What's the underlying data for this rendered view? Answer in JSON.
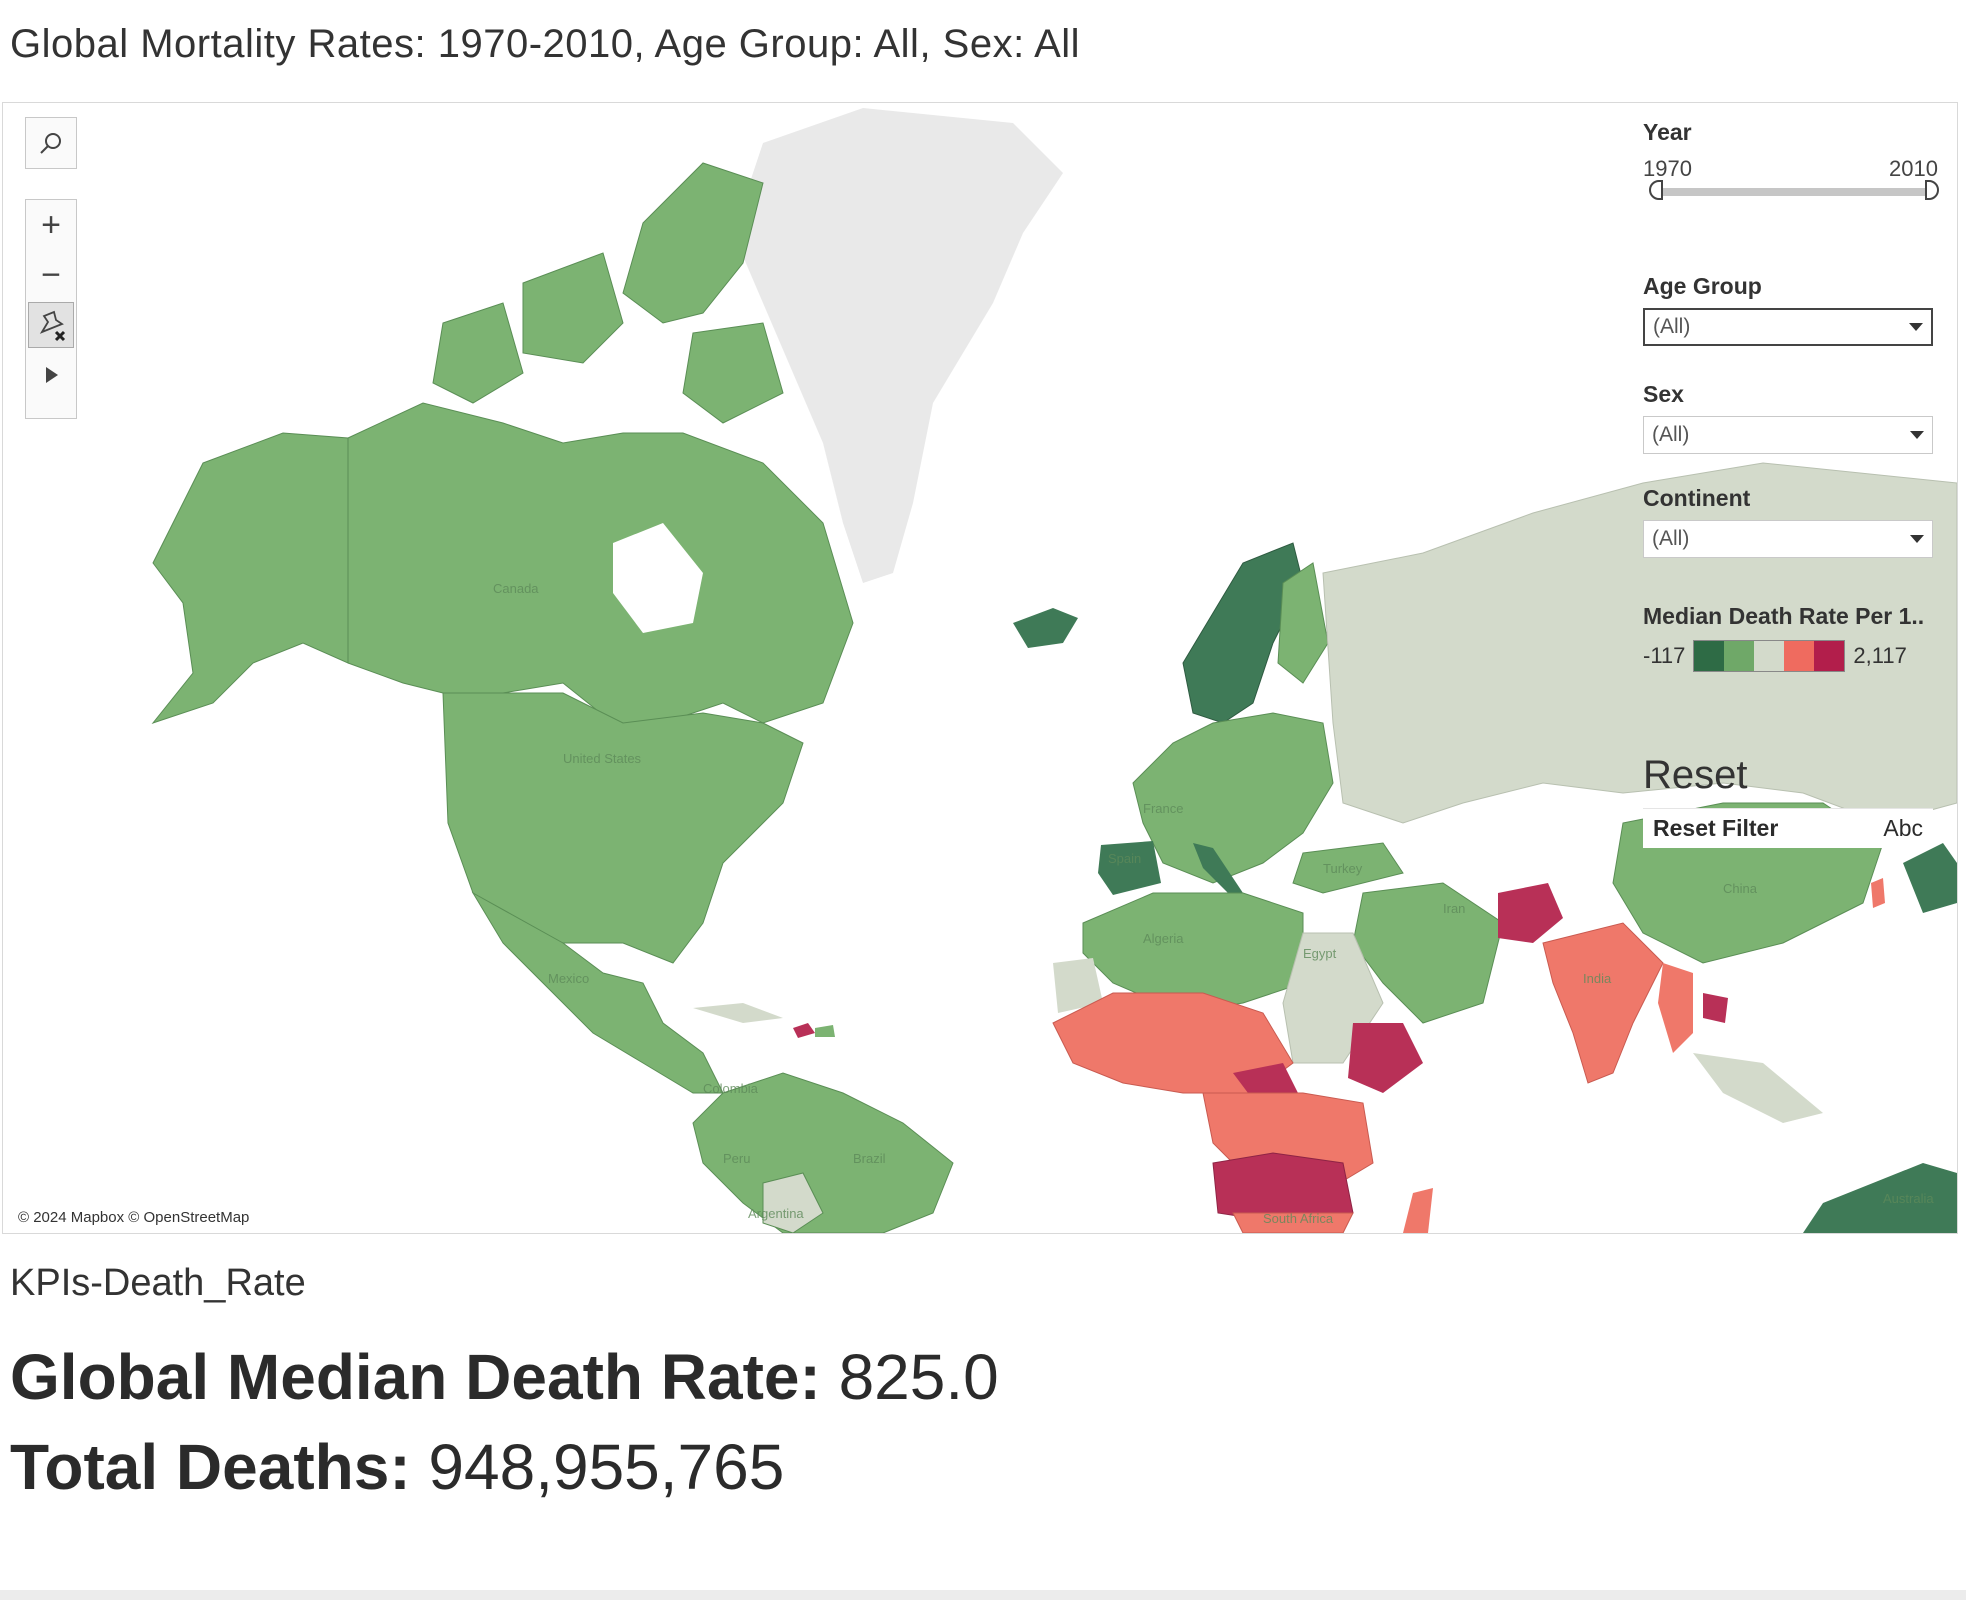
{
  "title": "Global Mortality Rates: 1970-2010, Age Group: All, Sex: All",
  "map": {
    "attribution": "© 2024 Mapbox © OpenStreetMap",
    "labels": [
      {
        "name": "Canada",
        "region": "north-america"
      },
      {
        "name": "United States",
        "region": "north-america"
      },
      {
        "name": "Mexico",
        "region": "north-america"
      },
      {
        "name": "Colombia",
        "region": "south-america"
      },
      {
        "name": "Peru",
        "region": "south-america"
      },
      {
        "name": "Brazil",
        "region": "south-america"
      },
      {
        "name": "Argentina",
        "region": "south-america"
      },
      {
        "name": "France",
        "region": "europe"
      },
      {
        "name": "Spain",
        "region": "europe"
      },
      {
        "name": "Turkey",
        "region": "asia"
      },
      {
        "name": "Iran",
        "region": "asia"
      },
      {
        "name": "Algeria",
        "region": "africa"
      },
      {
        "name": "Egypt",
        "region": "africa"
      },
      {
        "name": "India",
        "region": "asia"
      },
      {
        "name": "China",
        "region": "asia"
      },
      {
        "name": "South Africa",
        "region": "africa"
      },
      {
        "name": "Australia",
        "region": "oceania"
      }
    ],
    "categories": {
      "very-low": "#3f7a57",
      "low": "#7cb372",
      "neutral": "#d3dacb",
      "high": "#ef786a",
      "very-high": "#b83057",
      "no-data": "#eaeaea"
    }
  },
  "tools": {
    "search_icon": "search-icon",
    "zoom_in": "+",
    "zoom_out": "−",
    "pin_icon": "pin-reset-icon",
    "play_icon": "play-icon"
  },
  "filters": {
    "year": {
      "label": "Year",
      "min": "1970",
      "max": "2010",
      "selected_min": 1970,
      "selected_max": 2010
    },
    "age_group": {
      "label": "Age Group",
      "value": "(All)"
    },
    "sex": {
      "label": "Sex",
      "value": "(All)"
    },
    "continent": {
      "label": "Continent",
      "value": "(All)"
    }
  },
  "legend": {
    "title": "Median Death Rate Per 1..",
    "min": "-117",
    "max": "2,117",
    "colors": [
      "#2e6b45",
      "#6fa868",
      "#d3dacb",
      "#ef6b5f",
      "#b21e4b"
    ]
  },
  "reset": {
    "title": "Reset",
    "button_label": "Reset Filter",
    "abc": "Abc"
  },
  "kpi": {
    "header": "KPIs-Death_Rate",
    "median_label": "Global Median Death Rate:",
    "median_value": "825.0",
    "total_label": "Total Deaths:",
    "total_value": "948,955,765"
  }
}
